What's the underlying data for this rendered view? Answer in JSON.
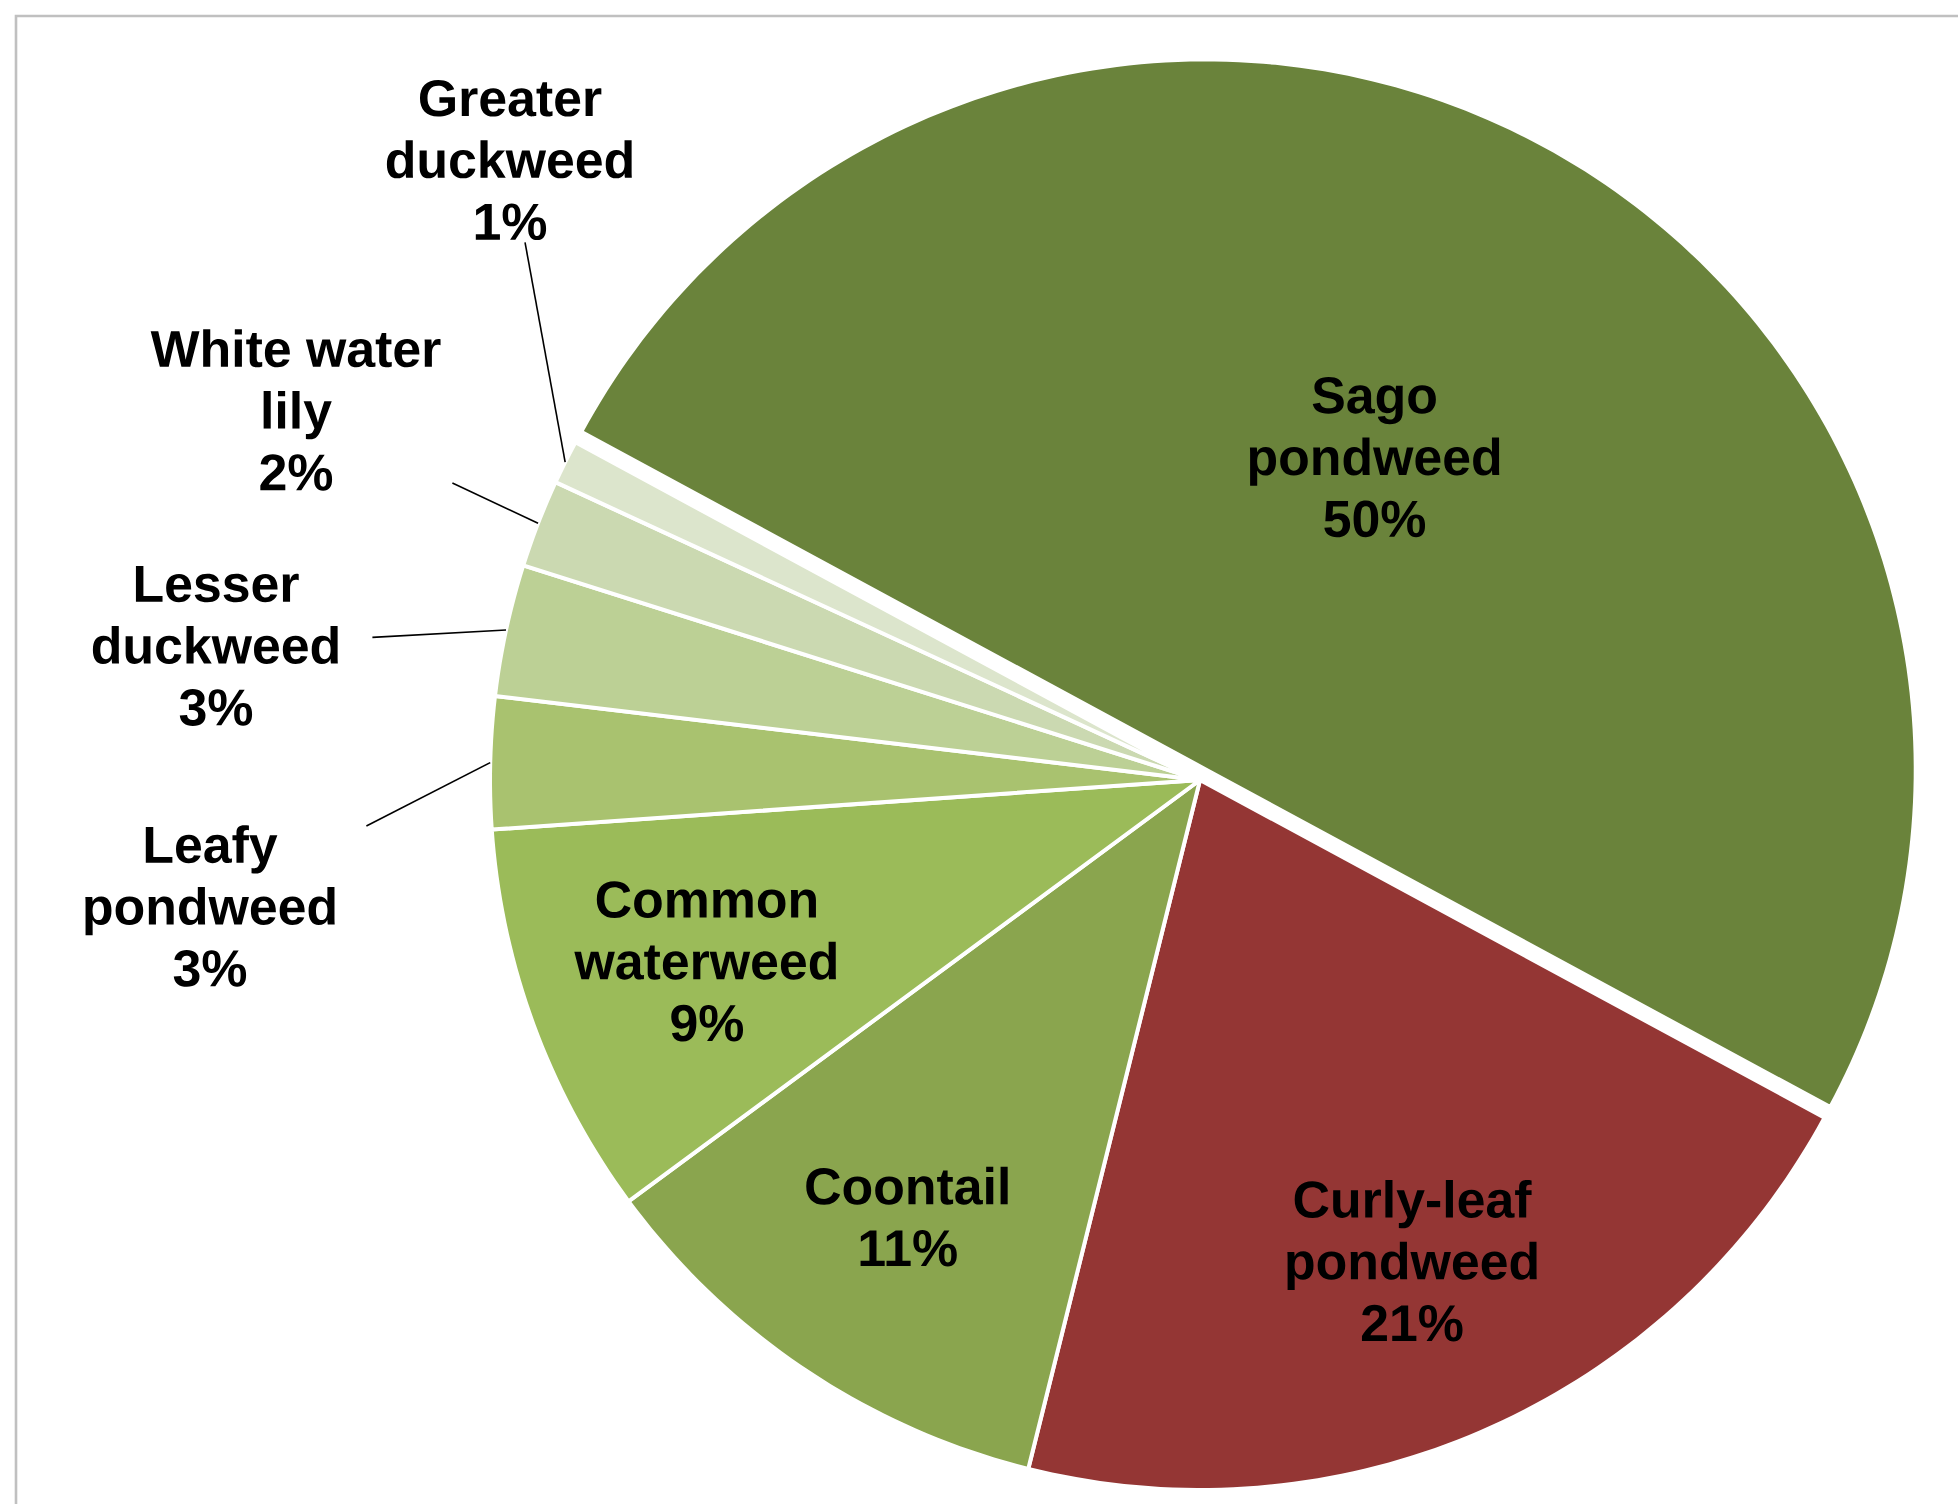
{
  "chart_data": {
    "type": "pie",
    "categories": [
      "Sago pondweed",
      "Curly-leaf pondweed",
      "Coontail",
      "Common waterweed",
      "Leafy pondweed",
      "Lesser duckweed",
      "White water lily",
      "Greater duckweed"
    ],
    "values": [
      50,
      21,
      11,
      9,
      3,
      3,
      2,
      1
    ],
    "colors": [
      "#6a833b",
      "#943634",
      "#8aa54e",
      "#9bbb59",
      "#a9c26f",
      "#bcd095",
      "#cbd9b1",
      "#dce5cc"
    ],
    "value_labels": [
      "50%",
      "21%",
      "11%",
      "9%",
      "3%",
      "3%",
      "2%",
      "1%"
    ]
  }
}
